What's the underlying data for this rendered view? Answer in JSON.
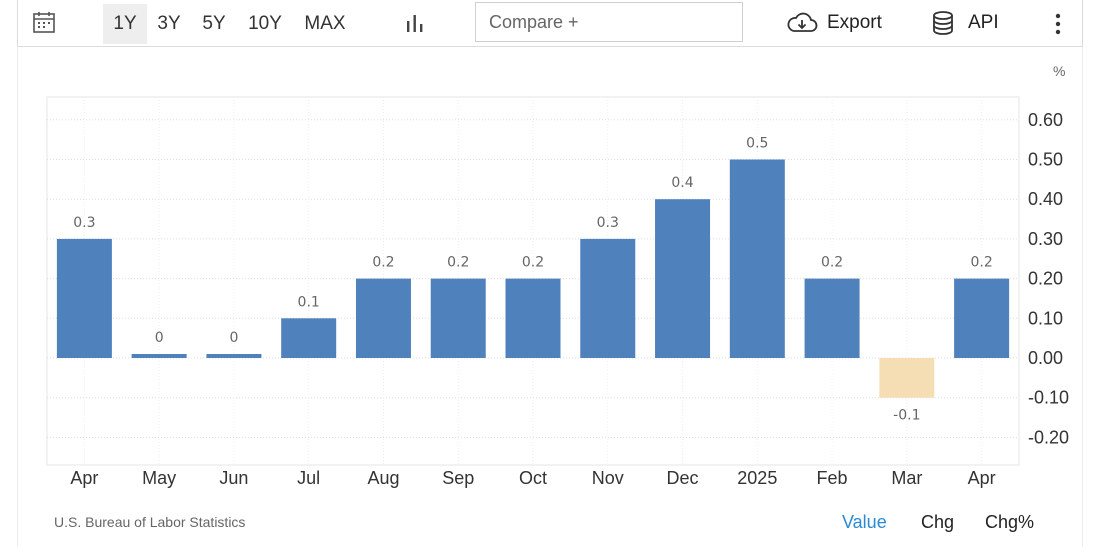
{
  "toolbar": {
    "calendar_icon": "calendar-icon",
    "ranges": [
      "1Y",
      "3Y",
      "5Y",
      "10Y",
      "MAX"
    ],
    "active_range": "1Y",
    "chart_type_icon": "bar-chart-icon",
    "compare_placeholder": "Compare +",
    "export_label": "Export",
    "api_label": "API",
    "more_icon": "vertical-dots-icon"
  },
  "colors": {
    "positive_bar": "#4f81bd",
    "negative_bar": "#f5deb3",
    "active_mode": "#2a8ad6"
  },
  "chart_data": {
    "type": "bar",
    "unit_label": "%",
    "categories": [
      "Apr",
      "May",
      "Jun",
      "Jul",
      "Aug",
      "Sep",
      "Oct",
      "Nov",
      "Dec",
      "2025",
      "Feb",
      "Mar",
      "Apr"
    ],
    "values": [
      0.3,
      0,
      0,
      0.1,
      0.2,
      0.2,
      0.2,
      0.3,
      0.4,
      0.5,
      0.2,
      -0.1,
      0.2
    ],
    "data_labels": [
      "0.3",
      "0",
      "0",
      "0.1",
      "0.2",
      "0.2",
      "0.2",
      "0.3",
      "0.4",
      "0.5",
      "0.2",
      "-0.1",
      "0.2"
    ],
    "y_ticks": [
      "0.60",
      "0.50",
      "0.40",
      "0.30",
      "0.20",
      "0.10",
      "0.00",
      "-0.10",
      "-0.20"
    ],
    "ylim": [
      -0.2,
      0.6
    ],
    "y_axis_side": "right",
    "grid": true
  },
  "footer": {
    "source": "U.S. Bureau of Labor Statistics",
    "modes": [
      "Value",
      "Chg",
      "Chg%"
    ],
    "active_mode": "Value"
  }
}
